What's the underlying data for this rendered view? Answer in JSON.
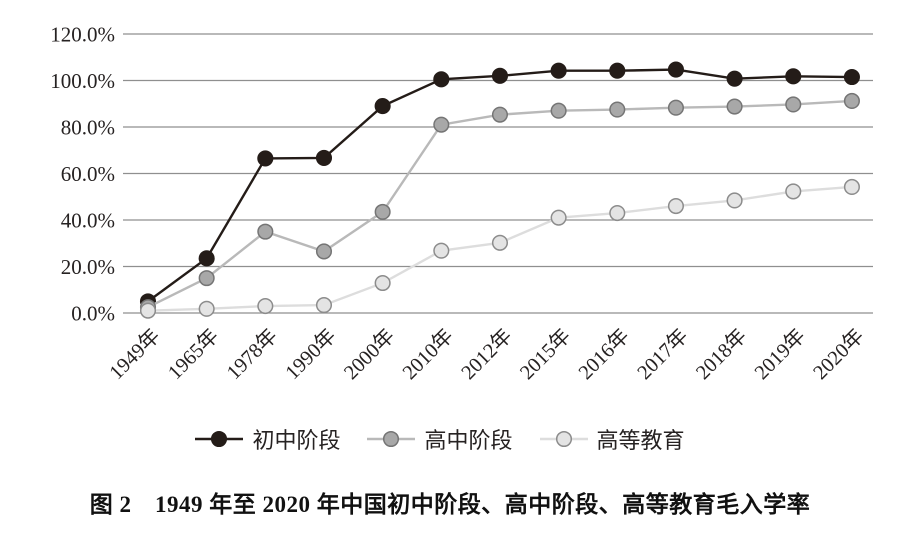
{
  "figure": {
    "caption": "图 2　1949 年至 2020 年中国初中阶段、高中阶段、高等教育毛入学率"
  },
  "chart_data": {
    "type": "line",
    "title": "",
    "xlabel": "",
    "ylabel": "",
    "categories": [
      "1949年",
      "1965年",
      "1978年",
      "1990年",
      "2000年",
      "2010年",
      "2012年",
      "2015年",
      "2016年",
      "2017年",
      "2018年",
      "2019年",
      "2020年"
    ],
    "y_tick_labels": [
      "120.0%",
      "100.0%",
      "80.0%",
      "60.0%",
      "40.0%",
      "20.0%",
      "0.0%"
    ],
    "y_tick_values": [
      120,
      100,
      80,
      60,
      40,
      20,
      0
    ],
    "ylim": [
      0,
      120
    ],
    "grid": "horizontal",
    "legend_position": "bottom",
    "series": [
      {
        "key": "junior-secondary",
        "name": "初中阶段",
        "values": [
          5,
          23.5,
          66.5,
          66.7,
          89,
          100.5,
          102,
          104.2,
          104.2,
          104.7,
          100.8,
          101.8,
          101.5
        ],
        "line_color": "#241c18",
        "marker_fill": "#241c18",
        "marker_stroke": "#241c18"
      },
      {
        "key": "senior-secondary",
        "name": "高中阶段",
        "values": [
          2.5,
          15,
          35,
          26.5,
          43.5,
          81,
          85.3,
          87,
          87.5,
          88.3,
          88.8,
          89.7,
          91.2
        ],
        "line_color": "#b9b9b9",
        "marker_fill": "#a8a8a8",
        "marker_stroke": "#757575"
      },
      {
        "key": "higher-education",
        "name": "高等教育",
        "values": [
          1,
          1.8,
          3,
          3.4,
          12.9,
          26.8,
          30.2,
          41,
          43,
          46,
          48.4,
          52.3,
          54.2
        ],
        "line_color": "#dddddd",
        "marker_fill": "#e4e4e4",
        "marker_stroke": "#8c8c8c"
      }
    ],
    "style": {
      "grid_color": "#8f8f8f",
      "tick_label_color": "#262222",
      "background": "#ffffff"
    }
  }
}
